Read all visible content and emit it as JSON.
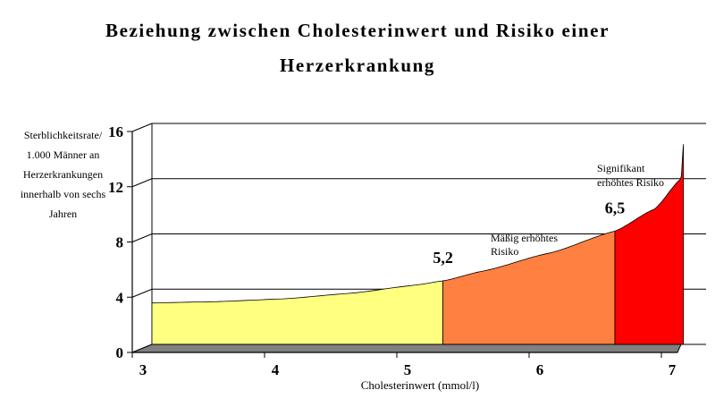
{
  "chart_data": {
    "type": "area",
    "title_lines": [
      "Beziehung zwischen Cholesterinwert und Risiko einer",
      "Herzerkrankung"
    ],
    "xlabel": "Cholesterinwert (mmol/l)",
    "ylabel_lines": [
      "Sterblichkeitsrate/",
      "1.000 Männer an",
      "Herzerkrankungen",
      "innerhalb von sechs",
      "Jahren"
    ],
    "x_ticks": [
      "3",
      "4",
      "5",
      "6",
      "7"
    ],
    "y_ticks": [
      "0",
      "4",
      "8",
      "12",
      "16"
    ],
    "xlim": [
      3,
      7
    ],
    "ylim": [
      0,
      16
    ],
    "grid": true,
    "series": [
      {
        "x": [
          3.0,
          3.5,
          4.0,
          4.5,
          5.0,
          5.2,
          5.5,
          6.0,
          6.5,
          6.8,
          7.0,
          7.1
        ],
        "y": [
          3.0,
          3.1,
          3.3,
          3.7,
          4.3,
          4.6,
          5.3,
          6.6,
          8.2,
          9.8,
          12.0,
          14.5
        ]
      }
    ],
    "zones": [
      {
        "from": 3.0,
        "to": 5.2,
        "color": "#ffff80"
      },
      {
        "from": 5.2,
        "to": 6.5,
        "color": "#ff8040"
      },
      {
        "from": 6.5,
        "to": 7.1,
        "color": "#ff0000"
      }
    ],
    "markers": [
      "5,2",
      "6,5"
    ],
    "annotations": {
      "moderate": [
        "Mäßig erhöhtes",
        "Risiko"
      ],
      "significant": [
        "Signifikant",
        "erhöhtes Risiko"
      ]
    }
  }
}
